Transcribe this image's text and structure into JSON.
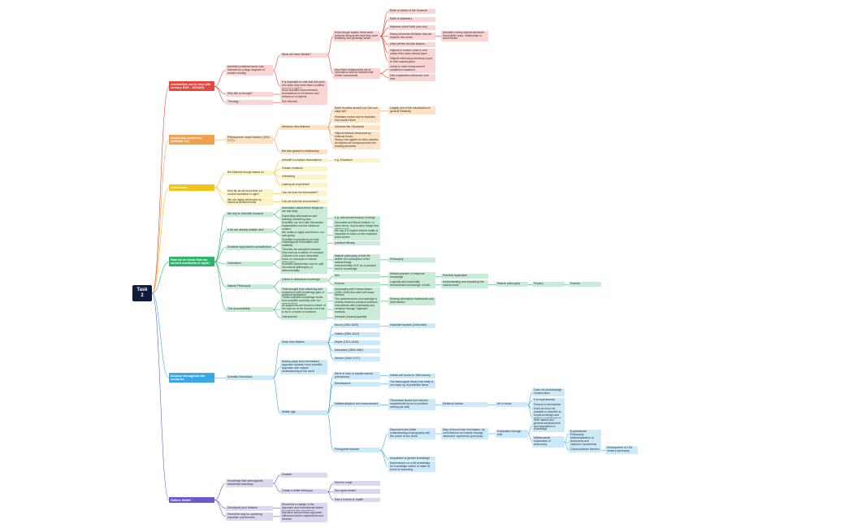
{
  "root": {
    "label": "Task 2",
    "children": [
      {
        "label": "Aristotelian world view (4th century BCE - 1600AD)",
        "children": [
          {
            "label": "Aristotle's material cause was followed by a large segment of modern society",
            "children": [
              {
                "label": "What are these Beliefs?",
                "children": [
                  {
                    "label": "Even though stated, there were persons living at the time they were relatively and generally weak",
                    "children": [
                      {
                        "label": "Earth at center of the Universe"
                      },
                      {
                        "label": "Earth is stationary"
                      },
                      {
                        "label": "Heavens circle Earth (sun too)"
                      },
                      {
                        "label": "Heavy elements fall faster than air towards the center",
                        "children": [
                          {
                            "label": "Aristotle's heavy objects fall faster than lighter ones, relationship to world center"
                          }
                        ]
                      },
                      {
                        "label": "other perfect circular shapes"
                      },
                      {
                        "label": "Objects in motion come to rest unless they have natural place"
                      },
                      {
                        "label": "Objects with heavy tendency move to their natural place"
                      }
                    ]
                  },
                  {
                    "label": "Also there explained its set of information and its fundamental Greek investments",
                    "children": [
                      {
                        "label": "needs to have measurement conditions explained"
                      },
                      {
                        "label": "Had explanation behaviour over time"
                      }
                    ]
                  }
                ]
              },
              {
                "label": "It is important to note that this does not mean they have been modified in some context"
              }
            ]
          },
          {
            "label": "Why this is enough?",
            "children": [
              {
                "label": "More scientific improvements, formulations of movement and behaviour of objects"
              }
            ]
          },
          {
            "label": "Theology",
            "children": [
              {
                "label": "Not reflected"
              }
            ]
          }
        ]
      },
      {
        "label": "Newtonian worldview (1600AD-TC)",
        "children": [
          {
            "label": "Philosophers: Isaac Newton (1642-1727)",
            "children": [
              {
                "label": "Newton's new believes",
                "children": [
                  {
                    "label": "Earth revolves around sun, the sun stays still",
                    "children": [
                      {
                        "label": "Largely due to the introduction of general Relativity"
                      }
                    ]
                  },
                  {
                    "label": "Planetary motion due to impulses that caused them"
                  },
                  {
                    "label": "Universe like Clockwork"
                  },
                  {
                    "label": "Objects behave influenced by external forces"
                  },
                  {
                    "label": "Heavy rock applies to other planets, all objects are composed from the existing elements"
                  }
                ]
              },
              {
                "label": "But less geared to relationship"
              }
            ]
          }
        ]
      },
      {
        "label": "Conclusion",
        "children": [
          {
            "label": "But believes though based on",
            "children": [
              {
                "label": "Aristotle's scripture observations",
                "children": [
                  {
                    "label": "e.g. Education"
                  }
                ]
              },
              {
                "label": "Greater evidence"
              },
              {
                "label": "Interesting"
              },
              {
                "label": "Lacking an experiment"
              }
            ]
          },
          {
            "label": "How far do we know that our current worldview is right?",
            "children": [
              {
                "label": "Can we trust the information?"
              }
            ]
          },
          {
            "label": "We are highly influenced by historical achievements",
            "children": [
              {
                "label": "Can we trust the environment?"
              }
            ]
          }
        ]
      },
      {
        "label": "How do we know that our current worldview is right?",
        "children": [
          {
            "label": "We rely on scientific research",
            "children": [
              {
                "label": "Information about these things we are told daily"
              },
              {
                "label": "Depending observations and learning something new",
                "children": [
                  {
                    "label": "e.g. relevant philosophy of things"
                  }
                ]
              }
            ]
          },
          {
            "label": "If we are already reliable here",
            "children": [
              {
                "label": "Scientific, we do it with Newtonian explanations and the historical context",
                "children": [
                  {
                    "label": "Descartes and Bacon believe, in other terms, its precision brings that others want"
                  }
                ]
              },
              {
                "label": "We reality to apply and think in our own grasp",
                "children": [
                  {
                    "label": "We say it is implied that its reality is important to focus on the empirical world before"
                  }
                ]
              }
            ]
          },
          {
            "label": "Evidence Approaches consideration",
            "children": [
              {
                "label": "Scientific explanations provide unambiguous information and reliability",
                "children": [
                  {
                    "label": "practical efficacy"
                  }
                ]
              },
              {
                "label": "Theories are accepted because they work as a variety of concepts"
              }
            ]
          },
          {
            "label": "Orientation",
            "children": [
              {
                "label": "Cultural to be used 'rationalist' focus on concepts of natural philosophy",
                "children": [
                  {
                    "label": "Natural philosophy is that the beliefs of a description of the natural things",
                    "children": [
                      {
                        "label": "Philosophy"
                      }
                    ]
                  }
                ]
              },
              {
                "label": "Scientific determinism can be split into natural philosophy or instrumentality",
                "children": [
                  {
                    "label": "Instrumentality of 'it' as a practical tool for knowledge"
                  }
                ]
              }
            ]
          },
          {
            "label": "Natural Philosophy",
            "children": [
              {
                "label": "Linked to distinctive knowledge",
                "children": [
                  {
                    "label": "Aim",
                    "children": [
                      {
                        "label": "Method practice of empirical knowledge",
                        "children": [
                          {
                            "label": "Practical application"
                          }
                        ]
                      }
                    ]
                  },
                  {
                    "label": "Science",
                    "children": [
                      {
                        "label": "Logically and empirically demonstrated knowledge of truth",
                        "children": [
                          {
                            "label": "Understanding and explaining the natural world",
                            "children": [
                              {
                                "label": "Natural philosophy",
                                "children": [
                                  {
                                    "label": "Physics",
                                    "children": [
                                      {
                                        "label": "Science"
                                      }
                                    ]
                                  }
                                ]
                              }
                            ]
                          }
                        ]
                      }
                    ]
                  }
                ]
              },
              {
                "label": "Time-brought from observing and experience with knowledge gain of practical application",
                "children": [
                  {
                    "label": "Associated with Francis Bacon (1561-1626) and later with Isaac Newton"
                  }
                ]
              }
            ]
          },
          {
            "label": "Tool accountability",
            "children": [
              {
                "label": "These scientific knowledge works from possible authority over our imaginations",
                "children": [
                  {
                    "label": "The achievements of knowledge is closely related to physical sciences",
                    "children": [
                      {
                        "label": "Sharing descriptive frameworks and determinism"
                      }
                    ]
                  }
                ]
              },
              {
                "label": "All judgments are bound to frame of the way we of the theories we trust to be in a frame of evidence",
                "children": [
                  {
                    "label": "Instruments offer practicality and certainty through 'objective' methods"
                  }
                ]
              },
              {
                "label": "Instrumental",
                "children": [
                  {
                    "label": "research physical quantity"
                  }
                ]
              }
            ]
          }
        ]
      },
      {
        "label": "Science throughout the centuries",
        "children": [
          {
            "label": "Scientific Revolution",
            "children": [
              {
                "label": "Deep time Matters",
                "children": [
                  {
                    "label": "Bacon (1561-1626)",
                    "children": [
                      {
                        "label": "Important aspects (Deductive)"
                      }
                    ]
                  },
                  {
                    "label": "Galileo (1564-1642)"
                  },
                  {
                    "label": "Kepler (1571-1630)"
                  },
                  {
                    "label": "Descartes (1596-1650)"
                  },
                  {
                    "label": "Newton (1642-1727)"
                  }
                ]
              },
              {
                "label": "Moving away from mechanism approach towards more scientific approach with natural understanding of the world"
              },
              {
                "label": "Middle age",
                "children": [
                  {
                    "label": "We're in form to explain natural phenomena",
                    "children": [
                      {
                        "label": "Infants are bound to 18th century"
                      }
                    ]
                  },
                  {
                    "label": "Renaissance",
                    "children": [
                      {
                        "label": "The astrological theory that really is not made up of predictive items"
                      }
                    ]
                  },
                  {
                    "label": "Mathematization and measurement",
                    "children": [
                      {
                        "label": "Theoretical issues and focused experimental focus for problem solving (as well)",
                        "children": [
                          {
                            "label": "Medieval Islamic",
                            "children": [
                              {
                                "label": "Art of reads",
                                "children": [
                                  {
                                    "label": "Does not acknowledge constructions"
                                  },
                                  {
                                    "label": "It is experimental"
                                  },
                                  {
                                    "label": "Present a mechanistic world picture explaining natural phenomena"
                                  },
                                  {
                                    "label": "Does as much as possible in describe to empirical design and relate to mathematical terms and is possibly unreliable"
                                  }
                                ]
                              }
                            ]
                          }
                        ]
                      }
                    ]
                  },
                  {
                    "label": "Portuguese balance",
                    "children": [
                      {
                        "label": "Dependent and belief understanding of geography with the center of our world",
                        "children": [
                          {
                            "label": "Way of bound their information, by not Evidence not include through 'awesome' experience (previous)",
                            "children": [
                              {
                                "label": "Exploration through time",
                                "children": [
                                  {
                                    "label": "With natural and general advancement and acquisition of knowledge"
                                  },
                                  {
                                    "label": "Mathematical explanation of Astronomy",
                                    "children": [
                                      {
                                        "label": "Experimental Philosophy"
                                      },
                                      {
                                        "label": "Mathematization of Astronomy and Optimum movements"
                                      },
                                      {
                                        "label": "Corpuscularian theories",
                                        "children": [
                                          {
                                            "label": "Development of 17th century astronomy"
                                          }
                                        ]
                                      }
                                    ]
                                  }
                                ]
                              }
                            ]
                          }
                        ]
                      },
                      {
                        "label": "Acquisition of greater knowledge"
                      },
                      {
                        "label": "Dependence on a full knowledge for knowledge seems to make its forms of reasoning"
                      }
                    ]
                  }
                ]
              }
            ]
          }
        ]
      },
      {
        "label": "Galileo Galilei",
        "children": [
          {
            "label": "Knowledge that went against aristotelian teachings",
            "children": [
              {
                "label": "Disaster"
              },
              {
                "label": "Create a better telescope",
                "children": [
                  {
                    "label": "Moon is rough"
                  },
                  {
                    "label": "Sun spots bodies"
                  },
                  {
                    "label": "Saw 4 moons of Jupiter"
                  }
                ]
              }
            ]
          },
          {
            "label": "Developed prior features",
            "children": [
              {
                "label": "Should be a change in the approach and foundational basics for science (the revolution)"
              }
            ]
          },
          {
            "label": "Paved the way for upcoming scientists and theories",
            "children": [
              {
                "label": "Narrative and previous approach influenced future experiments and theories"
              }
            ]
          }
        ]
      }
    ]
  }
}
